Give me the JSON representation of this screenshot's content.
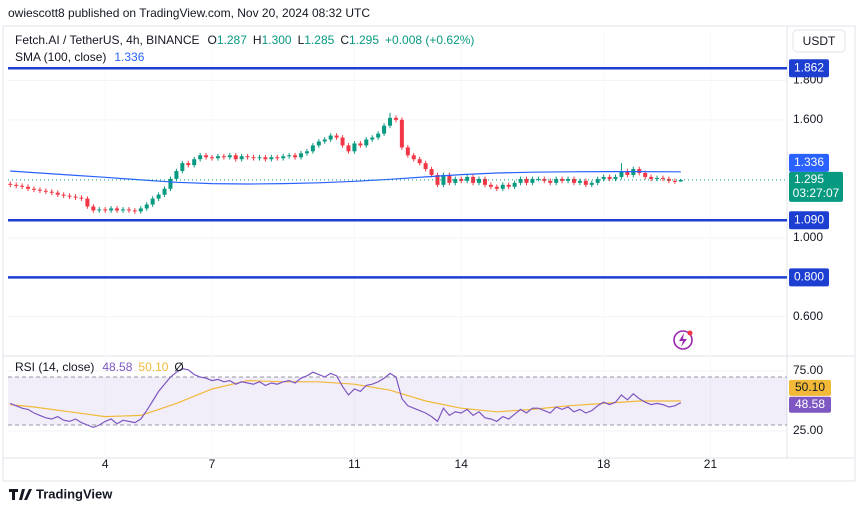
{
  "header": {
    "author_line": "owiescott8 published on TradingView.com, Nov 20, 2024 08:32 UTC"
  },
  "chart_data": {
    "type": "candlestick",
    "title": "Fetch.AI / TetherUS, 4h, BINANCE",
    "currency": "USDT",
    "ohlc_legend": [
      {
        "key": "O",
        "text": "1.287"
      },
      {
        "key": "H",
        "text": "1.300"
      },
      {
        "key": "L",
        "text": "1.285"
      },
      {
        "key": "C",
        "text": "1.295"
      }
    ],
    "change_text": "+0.008 (+0.62%)",
    "x": [
      1.333,
      1.5,
      1.667,
      1.833,
      2,
      2.167,
      2.333,
      2.5,
      2.667,
      2.833,
      3,
      3.167,
      3.333,
      3.5,
      3.667,
      3.833,
      4,
      4.167,
      4.333,
      4.5,
      4.667,
      4.833,
      5,
      5.167,
      5.333,
      5.5,
      5.667,
      5.833,
      6,
      6.167,
      6.333,
      6.5,
      6.667,
      6.833,
      7,
      7.167,
      7.333,
      7.5,
      7.667,
      7.833,
      8,
      8.167,
      8.333,
      8.5,
      8.667,
      8.833,
      9,
      9.167,
      9.333,
      9.5,
      9.667,
      9.833,
      10,
      10.167,
      10.333,
      10.5,
      10.667,
      10.833,
      11,
      11.167,
      11.333,
      11.5,
      11.667,
      11.833,
      12,
      12.167,
      12.333,
      12.5,
      12.667,
      12.833,
      13,
      13.167,
      13.333,
      13.5,
      13.667,
      13.833,
      14,
      14.167,
      14.333,
      14.5,
      14.667,
      14.833,
      15,
      15.167,
      15.333,
      15.5,
      15.667,
      15.833,
      16,
      16.167,
      16.333,
      16.5,
      16.667,
      16.833,
      17,
      17.167,
      17.333,
      17.5,
      17.667,
      17.833,
      18,
      18.167,
      18.333,
      18.5,
      18.667,
      18.833,
      19,
      19.167,
      19.333,
      19.5,
      19.667,
      19.833,
      20,
      20.167
    ],
    "open": [
      1.275,
      1.27,
      1.265,
      1.26,
      1.25,
      1.245,
      1.24,
      1.235,
      1.23,
      1.22,
      1.215,
      1.21,
      1.205,
      1.2,
      1.16,
      1.14,
      1.145,
      1.14,
      1.15,
      1.14,
      1.145,
      1.14,
      1.135,
      1.15,
      1.17,
      1.2,
      1.22,
      1.25,
      1.3,
      1.34,
      1.38,
      1.37,
      1.4,
      1.42,
      1.41,
      1.405,
      1.415,
      1.41,
      1.42,
      1.4,
      1.415,
      1.41,
      1.405,
      1.41,
      1.4,
      1.41,
      1.405,
      1.415,
      1.42,
      1.41,
      1.43,
      1.44,
      1.47,
      1.49,
      1.5,
      1.52,
      1.51,
      1.47,
      1.44,
      1.48,
      1.47,
      1.5,
      1.51,
      1.53,
      1.57,
      1.61,
      1.6,
      1.46,
      1.42,
      1.4,
      1.38,
      1.35,
      1.32,
      1.27,
      1.32,
      1.28,
      1.3,
      1.29,
      1.31,
      1.28,
      1.3,
      1.27,
      1.26,
      1.25,
      1.27,
      1.26,
      1.28,
      1.3,
      1.28,
      1.3,
      1.3,
      1.29,
      1.28,
      1.3,
      1.29,
      1.3,
      1.28,
      1.29,
      1.27,
      1.28,
      1.3,
      1.31,
      1.3,
      1.31,
      1.34,
      1.32,
      1.35,
      1.33,
      1.31,
      1.3,
      1.305,
      1.3,
      1.29,
      1.287
    ],
    "high": [
      1.287,
      1.282,
      1.277,
      1.272,
      1.262,
      1.257,
      1.252,
      1.247,
      1.242,
      1.232,
      1.227,
      1.222,
      1.217,
      1.212,
      1.172,
      1.157,
      1.157,
      1.162,
      1.162,
      1.157,
      1.157,
      1.152,
      1.162,
      1.182,
      1.212,
      1.232,
      1.262,
      1.312,
      1.352,
      1.392,
      1.392,
      1.412,
      1.432,
      1.432,
      1.422,
      1.427,
      1.427,
      1.432,
      1.432,
      1.427,
      1.427,
      1.422,
      1.422,
      1.422,
      1.422,
      1.422,
      1.427,
      1.432,
      1.432,
      1.442,
      1.452,
      1.482,
      1.502,
      1.512,
      1.532,
      1.532,
      1.522,
      1.482,
      1.492,
      1.492,
      1.512,
      1.522,
      1.542,
      1.582,
      1.635,
      1.622,
      1.612,
      1.472,
      1.432,
      1.412,
      1.392,
      1.362,
      1.332,
      1.332,
      1.332,
      1.312,
      1.312,
      1.322,
      1.322,
      1.312,
      1.312,
      1.282,
      1.272,
      1.282,
      1.282,
      1.292,
      1.312,
      1.312,
      1.312,
      1.312,
      1.312,
      1.302,
      1.312,
      1.312,
      1.312,
      1.312,
      1.302,
      1.302,
      1.292,
      1.312,
      1.322,
      1.322,
      1.322,
      1.38,
      1.352,
      1.362,
      1.362,
      1.342,
      1.322,
      1.317,
      1.317,
      1.312,
      1.302,
      1.3
    ],
    "low": [
      1.258,
      1.253,
      1.248,
      1.238,
      1.233,
      1.228,
      1.223,
      1.218,
      1.208,
      1.203,
      1.198,
      1.193,
      1.188,
      1.148,
      1.128,
      1.128,
      1.128,
      1.128,
      1.128,
      1.128,
      1.128,
      1.123,
      1.123,
      1.138,
      1.158,
      1.188,
      1.208,
      1.238,
      1.288,
      1.328,
      1.358,
      1.358,
      1.388,
      1.398,
      1.393,
      1.393,
      1.398,
      1.398,
      1.388,
      1.388,
      1.398,
      1.393,
      1.393,
      1.388,
      1.388,
      1.393,
      1.393,
      1.403,
      1.398,
      1.398,
      1.418,
      1.428,
      1.458,
      1.478,
      1.488,
      1.498,
      1.458,
      1.428,
      1.428,
      1.458,
      1.458,
      1.488,
      1.498,
      1.518,
      1.558,
      1.588,
      1.448,
      1.408,
      1.388,
      1.368,
      1.338,
      1.308,
      1.258,
      1.258,
      1.268,
      1.268,
      1.278,
      1.278,
      1.268,
      1.268,
      1.258,
      1.248,
      1.238,
      1.238,
      1.248,
      1.248,
      1.268,
      1.268,
      1.268,
      1.288,
      1.278,
      1.268,
      1.268,
      1.278,
      1.278,
      1.268,
      1.268,
      1.258,
      1.258,
      1.268,
      1.288,
      1.288,
      1.288,
      1.298,
      1.308,
      1.308,
      1.318,
      1.298,
      1.288,
      1.288,
      1.288,
      1.278,
      1.275,
      1.285
    ],
    "close": [
      1.27,
      1.265,
      1.26,
      1.25,
      1.245,
      1.24,
      1.235,
      1.23,
      1.22,
      1.215,
      1.21,
      1.205,
      1.2,
      1.16,
      1.14,
      1.145,
      1.14,
      1.15,
      1.14,
      1.145,
      1.14,
      1.135,
      1.15,
      1.17,
      1.2,
      1.22,
      1.25,
      1.3,
      1.34,
      1.38,
      1.37,
      1.4,
      1.42,
      1.41,
      1.405,
      1.415,
      1.41,
      1.42,
      1.4,
      1.415,
      1.41,
      1.405,
      1.41,
      1.4,
      1.41,
      1.405,
      1.415,
      1.42,
      1.41,
      1.43,
      1.44,
      1.47,
      1.49,
      1.5,
      1.52,
      1.51,
      1.47,
      1.44,
      1.48,
      1.47,
      1.5,
      1.51,
      1.53,
      1.57,
      1.61,
      1.6,
      1.46,
      1.42,
      1.4,
      1.38,
      1.35,
      1.32,
      1.27,
      1.32,
      1.28,
      1.3,
      1.29,
      1.31,
      1.28,
      1.3,
      1.27,
      1.26,
      1.25,
      1.27,
      1.26,
      1.28,
      1.3,
      1.28,
      1.3,
      1.3,
      1.29,
      1.28,
      1.3,
      1.29,
      1.3,
      1.28,
      1.29,
      1.27,
      1.28,
      1.3,
      1.31,
      1.3,
      1.31,
      1.34,
      1.32,
      1.35,
      1.33,
      1.31,
      1.3,
      1.305,
      1.3,
      1.29,
      1.287,
      1.295
    ],
    "up_color": "#089981",
    "down_color": "#f23645",
    "xlim": [
      1.27,
      23.15
    ],
    "xticks": [
      4,
      7,
      11,
      14,
      18,
      21
    ],
    "ylim": [
      0.406,
      2.056
    ],
    "yticks": [
      {
        "value": 0.6,
        "label": "0.600"
      },
      {
        "value": 1.0,
        "label": "1.000"
      },
      {
        "value": 1.6,
        "label": "1.600"
      },
      {
        "value": 1.8,
        "label": "1.800"
      }
    ],
    "last_price": {
      "value": 1.295,
      "label": "1.295",
      "countdown": "03:27:07"
    },
    "levels": [
      {
        "value": 1.862,
        "label": "1.862"
      },
      {
        "value": 1.09,
        "label": "1.090"
      },
      {
        "value": 0.8,
        "label": "0.800"
      }
    ],
    "level_color": "#1c3fd1",
    "sma": {
      "name": "SMA (100, close)",
      "color": "#2962ff",
      "value_label": "1.336",
      "x": [
        1.333,
        2,
        3,
        4,
        5,
        6,
        7,
        8,
        9,
        10,
        11,
        12,
        13,
        14,
        15,
        16,
        17,
        18,
        19,
        20,
        20.167
      ],
      "values": [
        1.34,
        1.332,
        1.32,
        1.308,
        1.295,
        1.283,
        1.276,
        1.274,
        1.276,
        1.28,
        1.288,
        1.298,
        1.31,
        1.322,
        1.33,
        1.334,
        1.336,
        1.337,
        1.337,
        1.336,
        1.336
      ]
    },
    "rsi": {
      "name": "RSI (14, close)",
      "color": "#7e57c2",
      "value_label": "48.58",
      "symbol": "Ø",
      "ylim": [
        2.5,
        85.83
      ],
      "yticks": [
        {
          "value": 25,
          "label": "25.00"
        },
        {
          "value": 75,
          "label": "75.00"
        }
      ],
      "band": [
        30,
        70
      ],
      "values": [
        48,
        46,
        44,
        43,
        40,
        38,
        36,
        35,
        37,
        34,
        33,
        35,
        32,
        30,
        28,
        30,
        33,
        35,
        31,
        34,
        33,
        32,
        35,
        42,
        50,
        58,
        64,
        70,
        74,
        77,
        76,
        72,
        70,
        69,
        67,
        68,
        66,
        67,
        64,
        66,
        65,
        64,
        66,
        63,
        65,
        64,
        66,
        67,
        65,
        69,
        71,
        74,
        72,
        70,
        73,
        71,
        62,
        55,
        60,
        58,
        63,
        64,
        66,
        69,
        73,
        70,
        52,
        46,
        44,
        42,
        40,
        37,
        33,
        44,
        38,
        41,
        40,
        43,
        38,
        41,
        36,
        35,
        33,
        37,
        35,
        39,
        43,
        40,
        44,
        44,
        42,
        40,
        45,
        43,
        45,
        41,
        43,
        40,
        42,
        46,
        49,
        47,
        49,
        55,
        51,
        56,
        52,
        49,
        47,
        48,
        47,
        45,
        46,
        48.58
      ],
      "ma": {
        "color": "#f2b938",
        "value_label": "50.10",
        "x": [
          1.333,
          2,
          3,
          4,
          5,
          6,
          7,
          8,
          9,
          10,
          11,
          12,
          13,
          14,
          15,
          16,
          17,
          18,
          19,
          20,
          20.167
        ],
        "values": [
          47,
          45,
          41,
          37,
          38,
          48,
          60,
          67,
          66,
          66,
          64,
          59,
          50,
          44,
          41,
          43,
          46,
          48,
          50,
          50,
          50.1
        ]
      }
    }
  },
  "footer": {
    "brand": "TradingView"
  }
}
